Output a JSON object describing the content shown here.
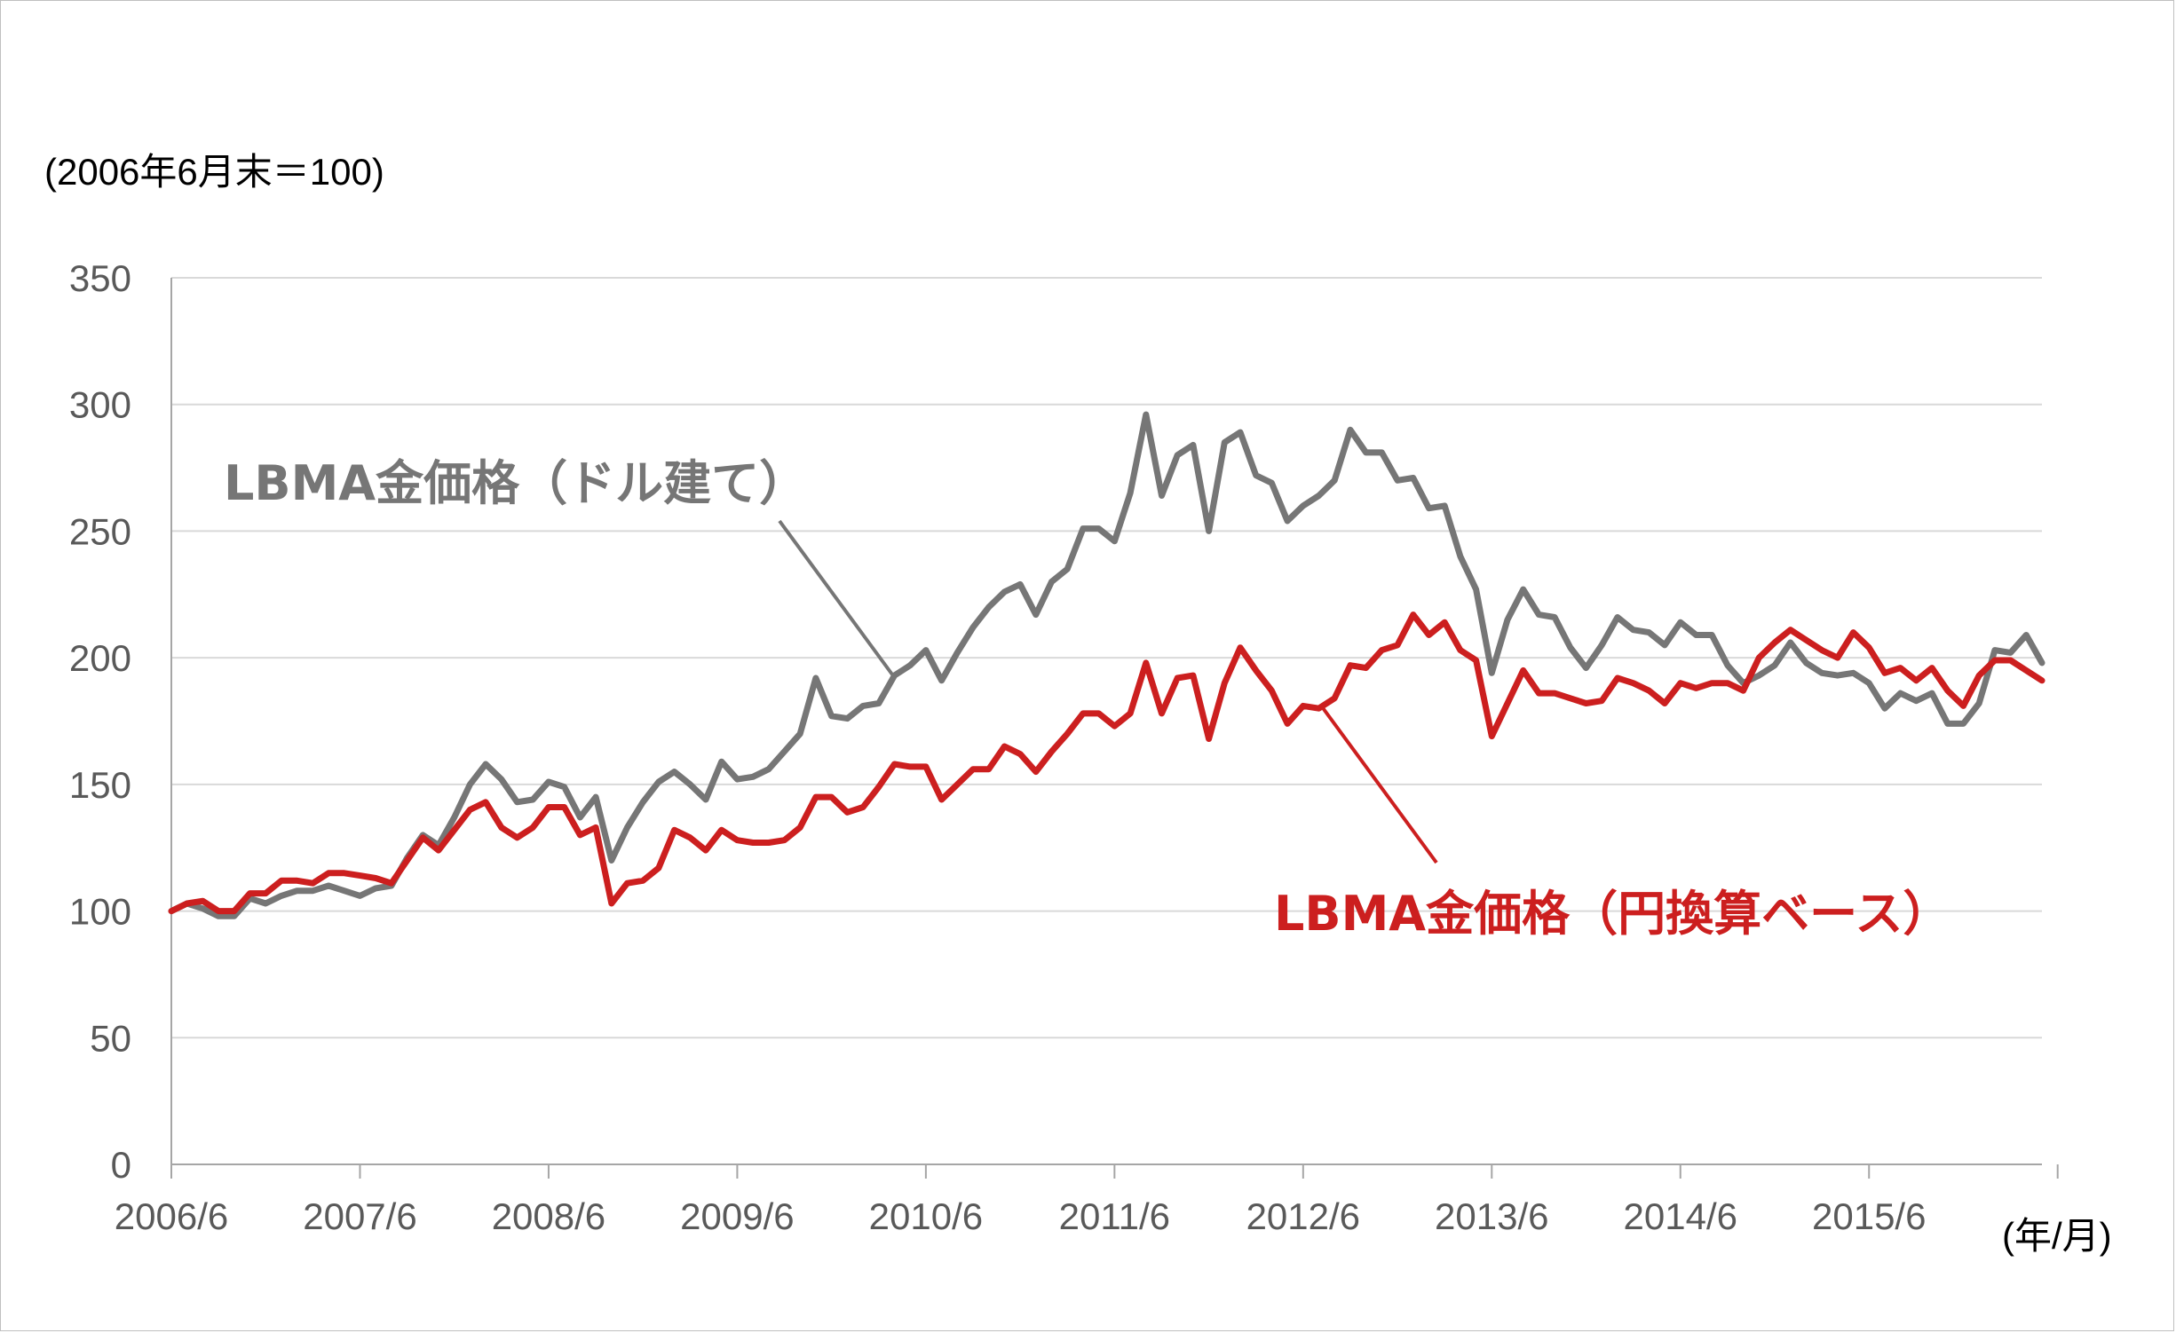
{
  "chart_data": {
    "type": "line",
    "y_unit_label": "(2006年6月末＝100)",
    "x_unit_label": "(年/月)",
    "ylim": [
      0,
      350
    ],
    "yticks": [
      "0",
      "50",
      "100",
      "150",
      "200",
      "250",
      "300",
      "350"
    ],
    "xtick_labels": [
      "2006/6",
      "2007/6",
      "2008/6",
      "2009/6",
      "2010/6",
      "2011/6",
      "2012/6",
      "2013/6",
      "2014/6",
      "2015/6"
    ],
    "x_range_months": "2006/6 – 2016/6 (monthly)",
    "grid": true,
    "legend": "inline annotations",
    "series": [
      {
        "name": "LBMA金価格（ドル建て）",
        "color": "#767676",
        "values": [
          100,
          103,
          101,
          98,
          98,
          105,
          103,
          106,
          108,
          108,
          110,
          108,
          106,
          109,
          110,
          121,
          130,
          126,
          137,
          150,
          158,
          152,
          143,
          144,
          151,
          149,
          137,
          145,
          120,
          133,
          143,
          151,
          155,
          150,
          144,
          159,
          152,
          153,
          156,
          163,
          170,
          192,
          177,
          176,
          181,
          182,
          193,
          197,
          203,
          191,
          202,
          212,
          220,
          226,
          229,
          217,
          230,
          235,
          251,
          251,
          246,
          265,
          296,
          264,
          280,
          284,
          250,
          285,
          289,
          272,
          269,
          254,
          260,
          264,
          270,
          290,
          281,
          281,
          270,
          271,
          259,
          260,
          240,
          227,
          194,
          215,
          227,
          217,
          216,
          204,
          196,
          205,
          216,
          211,
          210,
          205,
          214,
          209,
          209,
          197,
          190,
          193,
          197,
          206,
          198,
          194,
          193,
          194,
          190,
          180,
          186,
          183,
          186,
          174,
          174,
          182,
          203,
          202,
          209,
          198
        ],
        "x_start": "2006/6"
      },
      {
        "name": "LBMA金価格（円換算ベース）",
        "color": "#cc1f1f",
        "values": [
          100,
          103,
          104,
          100,
          100,
          107,
          107,
          112,
          112,
          111,
          115,
          115,
          114,
          113,
          111,
          120,
          129,
          124,
          132,
          140,
          143,
          133,
          129,
          133,
          141,
          141,
          130,
          133,
          103,
          111,
          112,
          117,
          132,
          129,
          124,
          132,
          128,
          127,
          127,
          128,
          133,
          145,
          145,
          139,
          141,
          149,
          158,
          157,
          157,
          144,
          150,
          156,
          156,
          165,
          162,
          155,
          163,
          170,
          178,
          178,
          173,
          178,
          198,
          178,
          192,
          193,
          168,
          190,
          204,
          195,
          187,
          174,
          181,
          180,
          184,
          197,
          196,
          203,
          205,
          217,
          209,
          214,
          203,
          199,
          169,
          182,
          195,
          186,
          186,
          184,
          182,
          183,
          192,
          190,
          187,
          182,
          190,
          188,
          190,
          190,
          187,
          200,
          206,
          211,
          207,
          203,
          200,
          210,
          204,
          194,
          196,
          191,
          196,
          187,
          181,
          193,
          199,
          199,
          195,
          191
        ],
        "x_start": "2006/6"
      }
    ],
    "annotations": [
      "LBMA金価格（ドル建て）",
      "LBMA金価格（円換算ベース）"
    ]
  }
}
